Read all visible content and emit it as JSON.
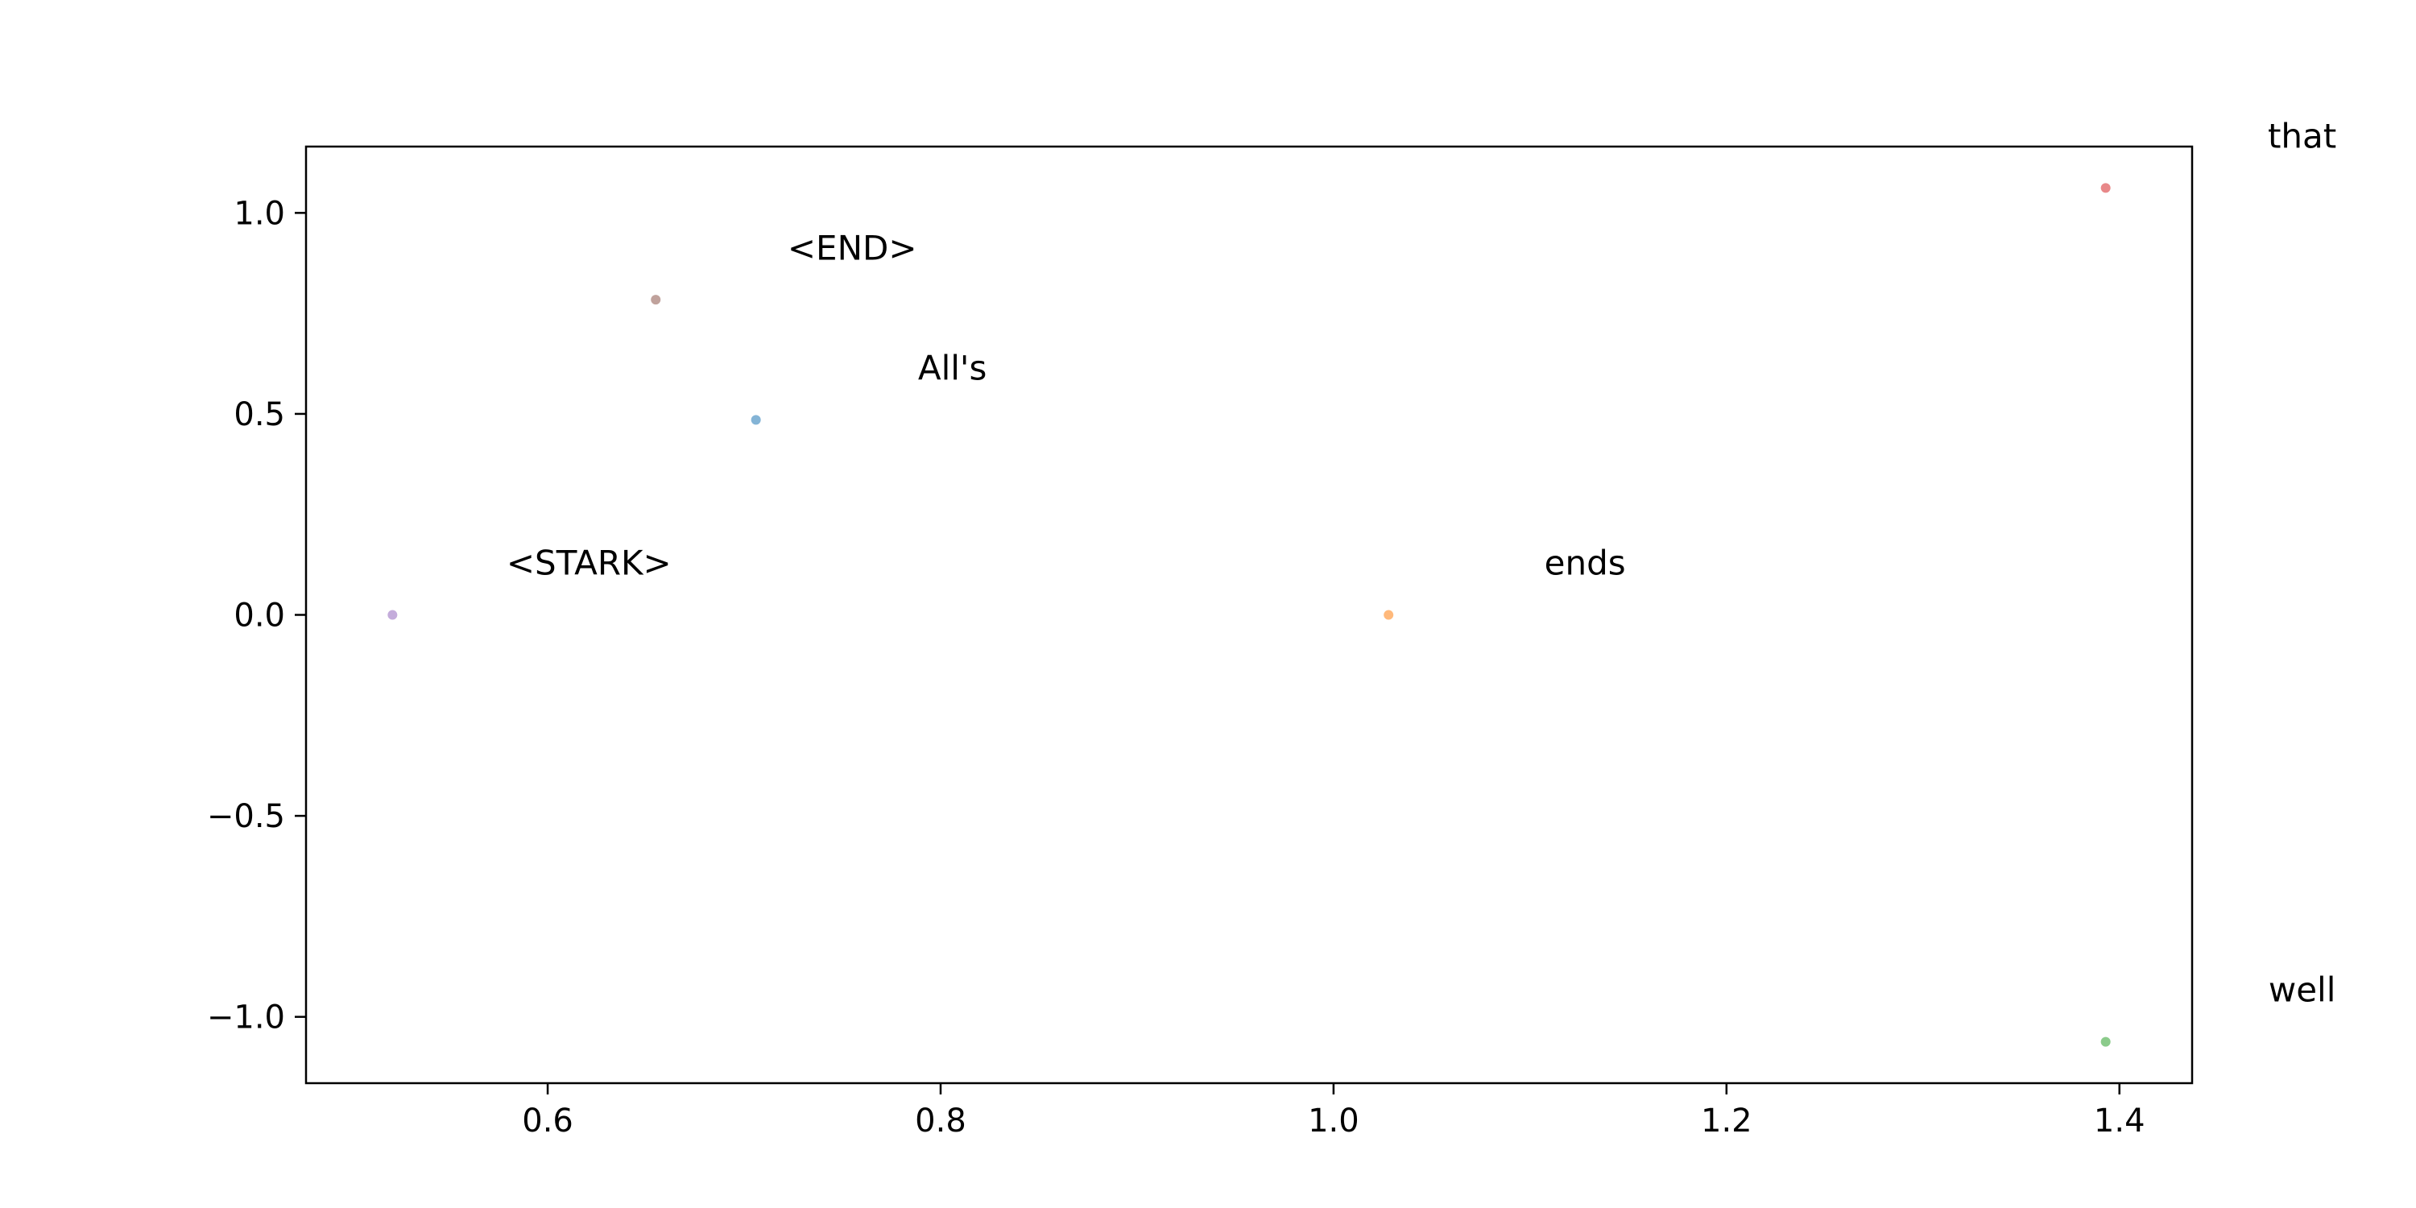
{
  "chart_data": {
    "type": "scatter",
    "title": "",
    "xlabel": "",
    "ylabel": "",
    "xlim": [
      0.477,
      1.437
    ],
    "ylim": [
      -1.165,
      1.165
    ],
    "xticks": [
      0.6,
      0.8,
      1.0,
      1.2,
      1.4
    ],
    "xtick_labels": [
      "0.6",
      "0.8",
      "1.0",
      "1.2",
      "1.4"
    ],
    "yticks": [
      -1.0,
      -0.5,
      0.0,
      0.5,
      1.0
    ],
    "ytick_labels": [
      "−1.0",
      "−0.5",
      "0.0",
      "0.5",
      "1.0"
    ],
    "grid": false,
    "legend": "none",
    "points": [
      {
        "label": "All's",
        "x": 0.706,
        "y": 0.485,
        "color": "#1f77b4"
      },
      {
        "label": "ends",
        "x": 1.028,
        "y": 0.0,
        "color": "#ff7f0e"
      },
      {
        "label": "well",
        "x": 1.393,
        "y": -1.062,
        "color": "#2ca02c"
      },
      {
        "label": "that",
        "x": 1.393,
        "y": 1.062,
        "color": "#d62728"
      },
      {
        "label": "<STARK>",
        "x": 0.521,
        "y": 0.0,
        "color": "#9467bd"
      },
      {
        "label": "<END>",
        "x": 0.655,
        "y": 0.784,
        "color": "#8c564b"
      }
    ],
    "label_offset": {
      "x": 0.1,
      "y": 0.13
    }
  }
}
